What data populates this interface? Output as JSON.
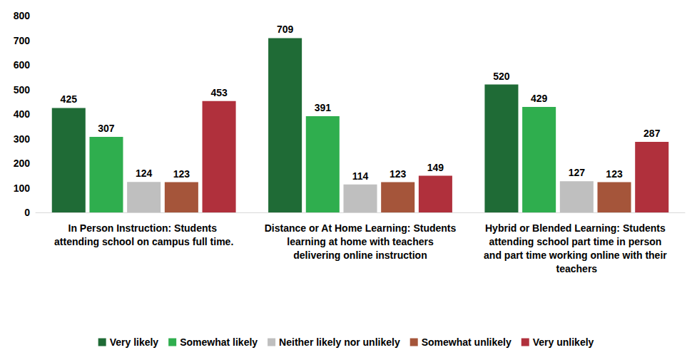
{
  "chart_data": {
    "type": "bar",
    "categories": [
      "In Person Instruction: Students attending school on campus full time.",
      "Distance or At Home Learning: Students learning at home with teachers delivering online instruction",
      "Hybrid or Blended Learning: Students attending school part time in person and part time working online with their teachers"
    ],
    "series": [
      {
        "name": "Very likely",
        "color": "#1f6b36",
        "values": [
          425,
          709,
          520
        ]
      },
      {
        "name": "Somewhat likely",
        "color": "#2fae4e",
        "values": [
          307,
          391,
          429
        ]
      },
      {
        "name": "Neither likely nor unlikely",
        "color": "#bfbfbf",
        "values": [
          124,
          114,
          127
        ]
      },
      {
        "name": "Somewhat unlikely",
        "color": "#a5553a",
        "values": [
          123,
          123,
          123
        ]
      },
      {
        "name": "Very unlikely",
        "color": "#b0303c",
        "values": [
          453,
          149,
          287
        ]
      }
    ],
    "ylim": [
      0,
      800
    ],
    "yticks": [
      0,
      100,
      200,
      300,
      400,
      500,
      600,
      700,
      800
    ],
    "grid": false,
    "legend": "bottom",
    "data_labels": true
  }
}
